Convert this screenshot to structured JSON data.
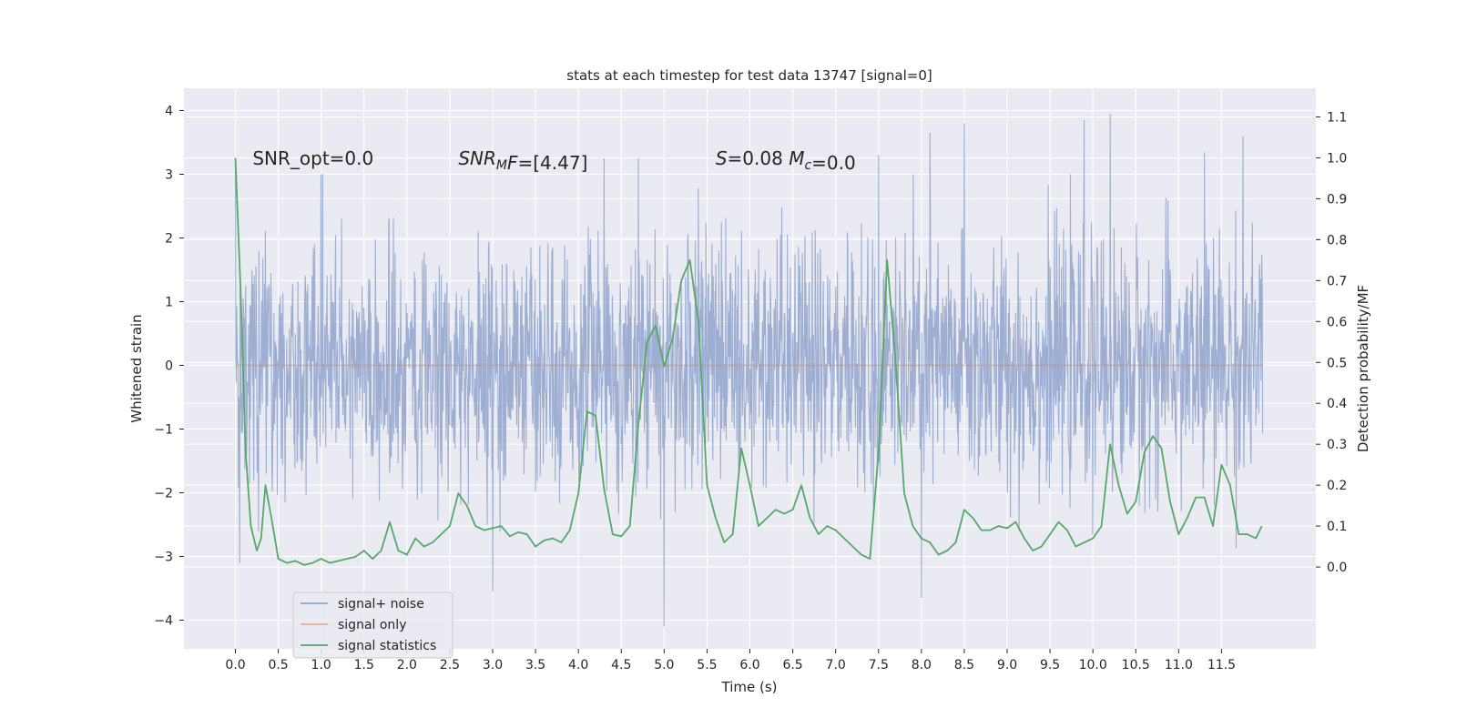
{
  "chart_data": {
    "type": "line",
    "title": "stats at each timestep for test data 13747 [signal=0]",
    "xlabel": "Time (s)",
    "ylabel": "Whitened strain",
    "ylabel_right": "Detection probability/MF",
    "xlim": [
      -0.6,
      12.6
    ],
    "ylim": [
      -4.45,
      4.35
    ],
    "ylim_right": [
      -0.2,
      1.17
    ],
    "x_ticks": [
      0.0,
      0.5,
      1.0,
      1.5,
      2.0,
      2.5,
      3.0,
      3.5,
      4.0,
      4.5,
      5.0,
      5.5,
      6.0,
      6.5,
      7.0,
      7.5,
      8.0,
      8.5,
      9.0,
      9.5,
      10.0,
      10.5,
      11.0,
      11.5
    ],
    "x_tick_labels": [
      "0.0",
      "0.5",
      "1.0",
      "1.5",
      "2.0",
      "2.5",
      "3.0",
      "3.5",
      "4.0",
      "4.5",
      "5.0",
      "5.5",
      "6.0",
      "6.5",
      "7.0",
      "7.5",
      "8.0",
      "8.5",
      "9.0",
      "9.5",
      "10.0",
      "10.5",
      "11.0",
      "11.5"
    ],
    "y_ticks": [
      -4,
      -3,
      -2,
      -1,
      0,
      1,
      2,
      3,
      4
    ],
    "y_tick_labels": [
      "−4",
      "−3",
      "−2",
      "−1",
      "0",
      "1",
      "2",
      "3",
      "4"
    ],
    "y_right_ticks": [
      0.0,
      0.1,
      0.2,
      0.3,
      0.4,
      0.5,
      0.6,
      0.7,
      0.8,
      0.9,
      1.0,
      1.1
    ],
    "y_right_tick_labels": [
      "0.0",
      "0.1",
      "0.2",
      "0.3",
      "0.4",
      "0.5",
      "0.6",
      "0.7",
      "0.8",
      "0.9",
      "1.0",
      "1.1"
    ],
    "grid": true,
    "legend_position": "lower-left",
    "annotations": [
      {
        "x": 0.2,
        "y": 3.15,
        "parts": [
          {
            "t": "SNR_opt=0.0"
          }
        ]
      },
      {
        "x": 2.6,
        "y": 3.15,
        "parts": [
          {
            "t": "SNR",
            "i": true
          },
          {
            "t": "M",
            "i": true,
            "sub": true
          },
          {
            "t": "F",
            "i": true
          },
          {
            "t": "=[4.47]"
          }
        ]
      },
      {
        "x": 5.6,
        "y": 3.15,
        "parts": [
          {
            "t": "S",
            "i": true
          },
          {
            "t": "=0.08   "
          },
          {
            "t": "M",
            "i": true
          },
          {
            "t": "c",
            "i": true,
            "sub": true
          },
          {
            "t": "=0.0"
          }
        ]
      }
    ],
    "series": [
      {
        "name": "signal+ noise",
        "axis": "left",
        "style": "noise",
        "color": "#8fa3cc",
        "t_start": 0.0,
        "t_end": 11.98,
        "sigma": 0.95,
        "seed": 13747,
        "extremes": [
          {
            "x": 0.0,
            "y": 3.05
          },
          {
            "x": 0.05,
            "y": -3.1
          },
          {
            "x": 1.0,
            "y": 3.0
          },
          {
            "x": 3.0,
            "y": -3.55
          },
          {
            "x": 4.3,
            "y": 3.25
          },
          {
            "x": 4.7,
            "y": 3.25
          },
          {
            "x": 5.0,
            "y": -4.1
          },
          {
            "x": 7.5,
            "y": 3.3
          },
          {
            "x": 8.0,
            "y": -3.65
          },
          {
            "x": 8.1,
            "y": 3.65
          },
          {
            "x": 8.5,
            "y": 3.8
          },
          {
            "x": 9.9,
            "y": 3.85
          },
          {
            "x": 10.2,
            "y": 3.95
          },
          {
            "x": 11.3,
            "y": 3.35
          },
          {
            "x": 11.75,
            "y": 3.6
          }
        ]
      },
      {
        "name": "signal only",
        "axis": "left",
        "style": "line",
        "color": "#dd8452",
        "x": [
          0.0,
          11.98
        ],
        "y": [
          0.0,
          0.0
        ]
      },
      {
        "name": "signal statistics",
        "axis": "right",
        "style": "line",
        "color": "#55a868",
        "x": [
          0.0,
          0.06,
          0.12,
          0.18,
          0.25,
          0.3,
          0.35,
          0.42,
          0.5,
          0.6,
          0.7,
          0.8,
          0.9,
          1.0,
          1.1,
          1.2,
          1.3,
          1.4,
          1.5,
          1.6,
          1.7,
          1.8,
          1.9,
          2.0,
          2.1,
          2.2,
          2.3,
          2.4,
          2.5,
          2.6,
          2.7,
          2.8,
          2.9,
          3.0,
          3.1,
          3.2,
          3.3,
          3.4,
          3.5,
          3.6,
          3.7,
          3.8,
          3.9,
          4.0,
          4.1,
          4.2,
          4.3,
          4.4,
          4.5,
          4.6,
          4.7,
          4.8,
          4.9,
          5.0,
          5.1,
          5.2,
          5.3,
          5.4,
          5.5,
          5.6,
          5.7,
          5.8,
          5.9,
          6.0,
          6.1,
          6.2,
          6.3,
          6.4,
          6.5,
          6.6,
          6.7,
          6.8,
          6.9,
          7.0,
          7.1,
          7.2,
          7.3,
          7.4,
          7.5,
          7.6,
          7.7,
          7.8,
          7.9,
          8.0,
          8.1,
          8.2,
          8.3,
          8.4,
          8.5,
          8.6,
          8.7,
          8.8,
          8.9,
          9.0,
          9.1,
          9.2,
          9.3,
          9.4,
          9.5,
          9.6,
          9.7,
          9.8,
          9.9,
          10.0,
          10.1,
          10.2,
          10.3,
          10.4,
          10.5,
          10.6,
          10.7,
          10.8,
          10.9,
          11.0,
          11.1,
          11.2,
          11.3,
          11.4,
          11.5,
          11.6,
          11.7,
          11.8,
          11.9,
          11.97
        ],
        "y": [
          1.0,
          0.68,
          0.28,
          0.1,
          0.04,
          0.07,
          0.2,
          0.12,
          0.02,
          0.01,
          0.015,
          0.005,
          0.01,
          0.02,
          0.01,
          0.015,
          0.02,
          0.025,
          0.04,
          0.02,
          0.04,
          0.11,
          0.04,
          0.03,
          0.07,
          0.05,
          0.06,
          0.08,
          0.1,
          0.18,
          0.15,
          0.1,
          0.09,
          0.095,
          0.1,
          0.075,
          0.085,
          0.08,
          0.05,
          0.065,
          0.07,
          0.06,
          0.09,
          0.18,
          0.38,
          0.37,
          0.19,
          0.08,
          0.075,
          0.1,
          0.35,
          0.55,
          0.59,
          0.49,
          0.56,
          0.7,
          0.75,
          0.6,
          0.2,
          0.12,
          0.06,
          0.08,
          0.29,
          0.2,
          0.1,
          0.12,
          0.14,
          0.13,
          0.14,
          0.2,
          0.12,
          0.08,
          0.1,
          0.09,
          0.07,
          0.05,
          0.03,
          0.02,
          0.28,
          0.75,
          0.5,
          0.18,
          0.1,
          0.07,
          0.06,
          0.03,
          0.04,
          0.06,
          0.14,
          0.12,
          0.09,
          0.09,
          0.1,
          0.095,
          0.11,
          0.07,
          0.04,
          0.05,
          0.08,
          0.11,
          0.09,
          0.05,
          0.06,
          0.07,
          0.1,
          0.3,
          0.2,
          0.13,
          0.16,
          0.28,
          0.32,
          0.29,
          0.16,
          0.08,
          0.12,
          0.17,
          0.17,
          0.1,
          0.25,
          0.2,
          0.08,
          0.08,
          0.07,
          0.1
        ]
      }
    ]
  }
}
